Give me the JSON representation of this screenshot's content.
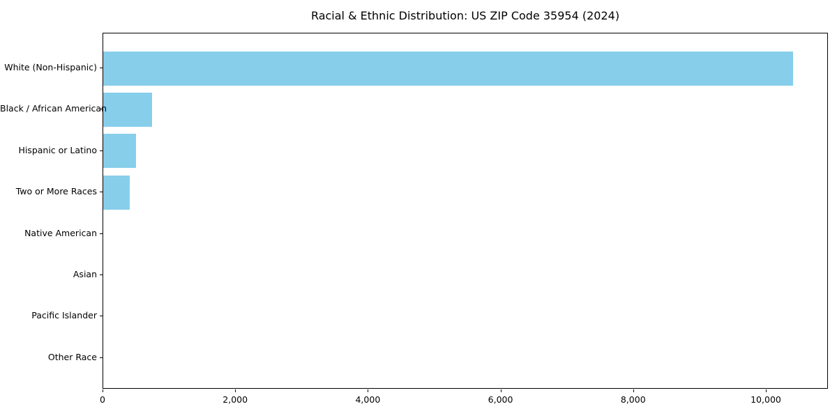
{
  "title": "Racial & Ethnic Distribution: US ZIP Code 35954 (2024)",
  "chart_data": {
    "type": "bar",
    "orientation": "horizontal",
    "title": "Racial & Ethnic Distribution: US ZIP Code 35954 (2024)",
    "categories": [
      "White (Non-Hispanic)",
      "Black / African American",
      "Hispanic or Latino",
      "Two or More Races",
      "Native American",
      "Asian",
      "Pacific Islander",
      "Other Race"
    ],
    "values": [
      10400,
      735,
      495,
      400,
      0,
      0,
      0,
      0
    ],
    "xlabel": "",
    "ylabel": "",
    "xlim": [
      0,
      10936
    ],
    "xticks": [
      0,
      2000,
      4000,
      6000,
      8000,
      10000
    ],
    "xtick_labels": [
      "0",
      "2,000",
      "4,000",
      "6,000",
      "8,000",
      "10,000"
    ],
    "bar_color": "#87CEEB",
    "background_color": "#ffffff",
    "spine_color": "#000000",
    "grid": "off",
    "legend": "none"
  }
}
